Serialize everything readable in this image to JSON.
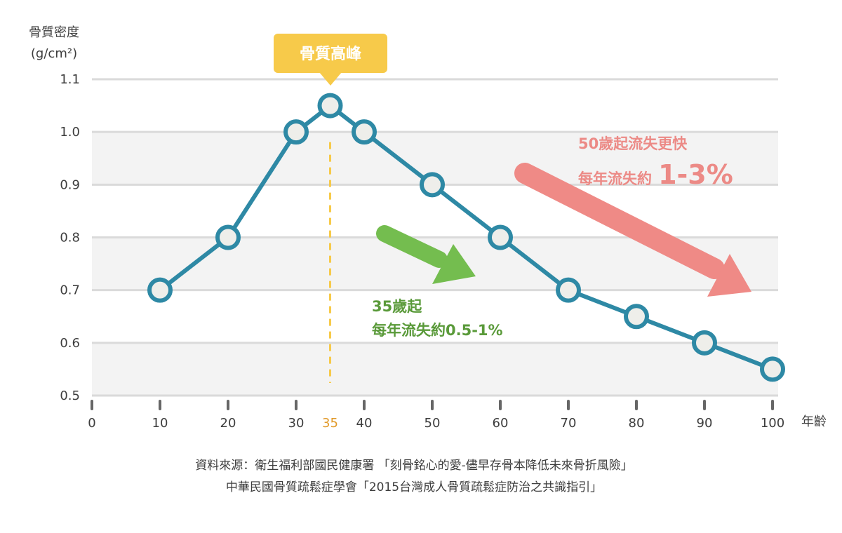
{
  "chart_data": {
    "type": "line",
    "title": "",
    "ylabel_line1": "骨質密度",
    "ylabel_line2": "(g/cm²)",
    "xlabel": "年齡",
    "xlim": [
      0,
      100
    ],
    "ylim": [
      0.5,
      1.1
    ],
    "x_ticks": [
      "0",
      "10",
      "20",
      "30",
      "35",
      "40",
      "50",
      "60",
      "70",
      "80",
      "90",
      "100"
    ],
    "y_ticks": [
      "0.5",
      "0.6",
      "0.7",
      "0.8",
      "0.9",
      "1.0",
      "1.1"
    ],
    "grid": "horizontal bands",
    "series": [
      {
        "x": [
          10,
          20,
          30,
          35,
          40,
          50,
          60,
          70,
          80,
          90,
          100
        ],
        "y": [
          0.7,
          0.8,
          1.0,
          1.05,
          1.0,
          0.9,
          0.8,
          0.7,
          0.65,
          0.6,
          0.55
        ]
      }
    ],
    "peak_x": 35,
    "annotations": {
      "peak": "骨質高峰",
      "green_line1": "35歲起",
      "green_line2": "每年流失約0.5-1%",
      "red_line1": "50歲起流失更快",
      "red_line2_prefix": "每年流失約",
      "red_line2_value": "1-3%"
    }
  },
  "colors": {
    "line": "#2e89a5",
    "marker_fill": "#eeeeea",
    "band": "#f3f3f3",
    "grid": "#dadada",
    "peak_bg": "#f7ca4a",
    "peak_dash": "#f7ca4a",
    "peak_tick": "#e19a2a",
    "green": "#74bd4f",
    "green_text": "#5a9a3a",
    "red": "#ef8a86",
    "text": "#3d3d3d"
  },
  "source": {
    "line1": "資料來源：衛生福利部國民健康署 「刻骨銘心的愛-儘早存骨本降低未來骨折風險」",
    "line2": "中華民國骨質疏鬆症學會「2015台灣成人骨質疏鬆症防治之共識指引」"
  }
}
